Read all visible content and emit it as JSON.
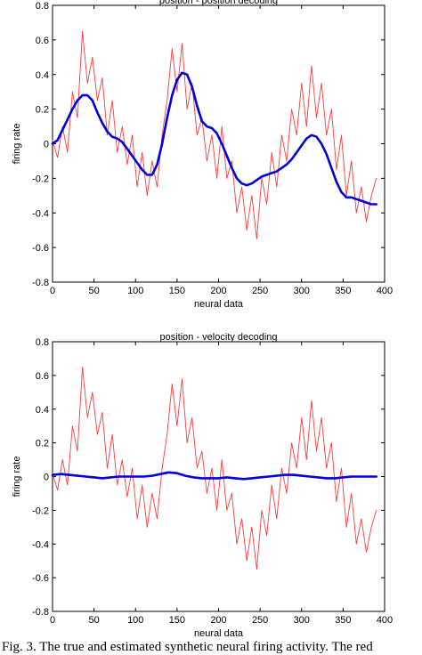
{
  "caption": "Fig. 3. The true and estimated synthetic neural firing activity. The red",
  "colors": {
    "true_signal": "#ff3b3b",
    "decoded_signal": "#0000dd"
  },
  "chart_data": [
    {
      "type": "line",
      "title": "position - position decoding",
      "xlabel": "neural data",
      "ylabel": "firing rate",
      "xlim": [
        0,
        400
      ],
      "ylim": [
        -0.8,
        0.8
      ],
      "xticks": [
        "0",
        "50",
        "100",
        "150",
        "200",
        "250",
        "300",
        "350",
        "400"
      ],
      "yticks": [
        "-0.8",
        "-0.6",
        "-0.4",
        "-0.2",
        "0",
        "0.2",
        "0.4",
        "0.6",
        "0.8"
      ],
      "grid": false,
      "series": [
        {
          "style": "thin-red-noisy",
          "x": [
            0,
            6,
            12,
            18,
            24,
            30,
            36,
            42,
            48,
            54,
            60,
            66,
            72,
            78,
            84,
            90,
            96,
            102,
            108,
            114,
            120,
            126,
            132,
            138,
            144,
            150,
            156,
            162,
            168,
            174,
            180,
            186,
            192,
            198,
            204,
            210,
            216,
            222,
            228,
            234,
            240,
            246,
            252,
            258,
            264,
            270,
            276,
            282,
            288,
            294,
            300,
            306,
            312,
            318,
            324,
            330,
            336,
            342,
            348,
            354,
            360,
            366,
            372,
            378,
            384,
            390
          ],
          "values": [
            0.02,
            -0.08,
            0.1,
            -0.05,
            0.3,
            0.15,
            0.65,
            0.35,
            0.5,
            0.25,
            0.38,
            0.05,
            0.25,
            -0.05,
            0.1,
            -0.12,
            0.05,
            -0.25,
            -0.05,
            -0.3,
            -0.1,
            -0.25,
            0.05,
            0.25,
            0.55,
            0.3,
            0.58,
            0.2,
            0.35,
            0.05,
            0.15,
            -0.1,
            0.05,
            -0.2,
            0.1,
            -0.2,
            -0.1,
            -0.4,
            -0.25,
            -0.5,
            -0.3,
            -0.55,
            -0.2,
            -0.35,
            -0.05,
            -0.25,
            0.05,
            -0.1,
            0.2,
            0.05,
            0.35,
            0.1,
            0.45,
            0.15,
            0.35,
            0.05,
            0.2,
            -0.15,
            0.05,
            -0.3,
            -0.1,
            -0.4,
            -0.25,
            -0.45,
            -0.3,
            -0.2
          ]
        },
        {
          "style": "thick-blue-smooth",
          "x": [
            0,
            6,
            12,
            18,
            24,
            30,
            36,
            42,
            48,
            54,
            60,
            66,
            72,
            78,
            84,
            90,
            96,
            102,
            108,
            114,
            120,
            126,
            132,
            138,
            144,
            150,
            156,
            162,
            168,
            174,
            180,
            186,
            192,
            198,
            204,
            210,
            216,
            222,
            228,
            234,
            240,
            246,
            252,
            258,
            264,
            270,
            276,
            282,
            288,
            294,
            300,
            306,
            312,
            318,
            324,
            330,
            336,
            342,
            348,
            354,
            360,
            366,
            372,
            378,
            384,
            390
          ],
          "values": [
            0.0,
            0.02,
            0.08,
            0.14,
            0.2,
            0.25,
            0.28,
            0.28,
            0.25,
            0.18,
            0.12,
            0.07,
            0.04,
            0.03,
            0.01,
            -0.03,
            -0.07,
            -0.11,
            -0.15,
            -0.18,
            -0.18,
            -0.12,
            0.0,
            0.15,
            0.28,
            0.37,
            0.41,
            0.4,
            0.33,
            0.22,
            0.13,
            0.1,
            0.09,
            0.06,
            0.0,
            -0.07,
            -0.14,
            -0.2,
            -0.23,
            -0.24,
            -0.23,
            -0.21,
            -0.19,
            -0.18,
            -0.17,
            -0.16,
            -0.14,
            -0.12,
            -0.09,
            -0.05,
            -0.01,
            0.03,
            0.05,
            0.04,
            0.0,
            -0.06,
            -0.14,
            -0.22,
            -0.28,
            -0.31,
            -0.31,
            -0.32,
            -0.33,
            -0.34,
            -0.35,
            -0.35
          ]
        }
      ]
    },
    {
      "type": "line",
      "title": "position - velocity decoding",
      "xlabel": "neural data",
      "ylabel": "firing rate",
      "xlim": [
        0,
        400
      ],
      "ylim": [
        -0.8,
        0.8
      ],
      "xticks": [
        "0",
        "50",
        "100",
        "150",
        "200",
        "250",
        "300",
        "350",
        "400"
      ],
      "yticks": [
        "-0.8",
        "-0.6",
        "-0.4",
        "-0.2",
        "0",
        "0.2",
        "0.4",
        "0.6",
        "0.8"
      ],
      "grid": false,
      "series": [
        {
          "style": "thin-red-noisy",
          "x": [
            0,
            6,
            12,
            18,
            24,
            30,
            36,
            42,
            48,
            54,
            60,
            66,
            72,
            78,
            84,
            90,
            96,
            102,
            108,
            114,
            120,
            126,
            132,
            138,
            144,
            150,
            156,
            162,
            168,
            174,
            180,
            186,
            192,
            198,
            204,
            210,
            216,
            222,
            228,
            234,
            240,
            246,
            252,
            258,
            264,
            270,
            276,
            282,
            288,
            294,
            300,
            306,
            312,
            318,
            324,
            330,
            336,
            342,
            348,
            354,
            360,
            366,
            372,
            378,
            384,
            390
          ],
          "values": [
            0.02,
            -0.08,
            0.1,
            -0.05,
            0.3,
            0.15,
            0.65,
            0.35,
            0.5,
            0.25,
            0.38,
            0.05,
            0.25,
            -0.05,
            0.1,
            -0.12,
            0.05,
            -0.25,
            -0.05,
            -0.3,
            -0.1,
            -0.25,
            0.05,
            0.25,
            0.55,
            0.3,
            0.58,
            0.2,
            0.35,
            0.05,
            0.15,
            -0.1,
            0.05,
            -0.2,
            0.1,
            -0.2,
            -0.1,
            -0.4,
            -0.25,
            -0.5,
            -0.3,
            -0.55,
            -0.2,
            -0.35,
            -0.05,
            -0.25,
            0.05,
            -0.1,
            0.2,
            0.05,
            0.35,
            0.1,
            0.45,
            0.15,
            0.35,
            0.05,
            0.2,
            -0.15,
            0.05,
            -0.3,
            -0.1,
            -0.4,
            -0.25,
            -0.45,
            -0.3,
            -0.2
          ]
        },
        {
          "style": "thick-blue-smooth",
          "x": [
            0,
            10,
            20,
            30,
            40,
            50,
            60,
            70,
            80,
            90,
            100,
            110,
            120,
            130,
            140,
            150,
            160,
            170,
            180,
            190,
            200,
            210,
            220,
            230,
            240,
            250,
            260,
            270,
            280,
            290,
            300,
            310,
            320,
            330,
            340,
            350,
            360,
            370,
            380,
            390
          ],
          "values": [
            0.01,
            0.015,
            0.01,
            0.005,
            0.0,
            -0.005,
            -0.01,
            -0.005,
            0.0,
            0.0,
            0.0,
            0.0,
            0.005,
            0.015,
            0.025,
            0.02,
            0.005,
            -0.005,
            -0.01,
            -0.01,
            -0.01,
            -0.005,
            -0.01,
            -0.015,
            -0.01,
            -0.005,
            0.0,
            0.005,
            0.01,
            0.01,
            0.005,
            0.0,
            -0.005,
            -0.01,
            -0.01,
            -0.005,
            0.0,
            0.0,
            0.0,
            0.0
          ]
        }
      ]
    }
  ]
}
